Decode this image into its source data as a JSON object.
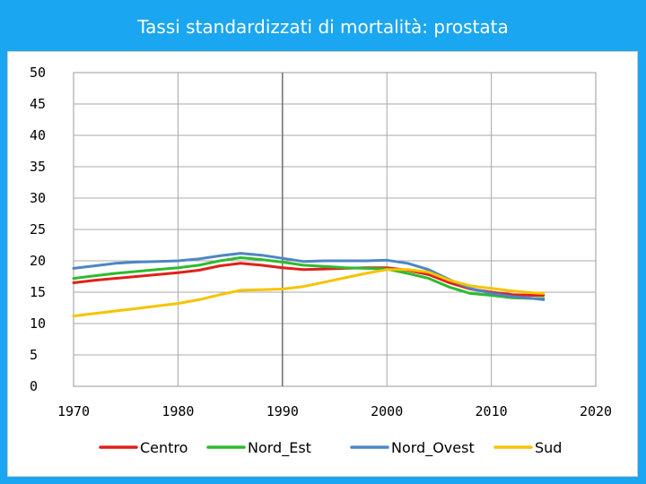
{
  "slide": {
    "title": "Tassi standardizzati di mortalità: prostata",
    "background": "#1aa6f0"
  },
  "chart_data": {
    "type": "line",
    "title": "Tassi standardizzati di mortalità: prostata",
    "xlabel": "",
    "ylabel": "",
    "xlim": [
      1970,
      2020
    ],
    "ylim": [
      0,
      50
    ],
    "xticks": [
      1970,
      1980,
      1990,
      2000,
      2010,
      2020
    ],
    "yticks": [
      0,
      5,
      10,
      15,
      20,
      25,
      30,
      35,
      40,
      45,
      50
    ],
    "grid": true,
    "legend": "bottom",
    "series": [
      {
        "name": "Centro",
        "color": "#e0201a",
        "x": [
          1970,
          1972,
          1974,
          1976,
          1978,
          1980,
          1982,
          1984,
          1986,
          1988,
          1990,
          1992,
          1994,
          1996,
          1998,
          2000,
          2002,
          2004,
          2006,
          2008,
          2010,
          2012,
          2014,
          2015
        ],
        "y": [
          16.5,
          16.9,
          17.2,
          17.5,
          17.8,
          18.1,
          18.5,
          19.2,
          19.6,
          19.3,
          18.9,
          18.6,
          18.7,
          18.8,
          18.9,
          18.9,
          18.5,
          17.8,
          16.5,
          15.5,
          15.0,
          14.6,
          14.5,
          14.5
        ]
      },
      {
        "name": "Nord_Est",
        "color": "#2dbb2d",
        "x": [
          1970,
          1972,
          1974,
          1976,
          1978,
          1980,
          1982,
          1984,
          1986,
          1988,
          1990,
          1992,
          1994,
          1996,
          1998,
          2000,
          2002,
          2004,
          2006,
          2008,
          2010,
          2012,
          2014,
          2015
        ],
        "y": [
          17.2,
          17.6,
          18.0,
          18.3,
          18.6,
          18.9,
          19.3,
          20.0,
          20.5,
          20.2,
          19.8,
          19.3,
          19.1,
          18.9,
          18.8,
          18.7,
          18.0,
          17.2,
          15.8,
          14.8,
          14.5,
          14.1,
          14.0,
          14.0
        ]
      },
      {
        "name": "Nord_Ovest",
        "color": "#4d86c4",
        "x": [
          1970,
          1972,
          1974,
          1976,
          1978,
          1980,
          1982,
          1984,
          1986,
          1988,
          1990,
          1992,
          1994,
          1996,
          1998,
          2000,
          2002,
          2004,
          2006,
          2008,
          2010,
          2012,
          2014,
          2015
        ],
        "y": [
          18.8,
          19.2,
          19.6,
          19.8,
          19.9,
          20.0,
          20.3,
          20.8,
          21.2,
          20.9,
          20.4,
          19.9,
          20.0,
          20.0,
          20.0,
          20.1,
          19.6,
          18.6,
          17.0,
          15.6,
          14.8,
          14.3,
          14.0,
          13.8
        ]
      },
      {
        "name": "Sud",
        "color": "#f5c400",
        "x": [
          1970,
          1972,
          1974,
          1976,
          1978,
          1980,
          1982,
          1984,
          1986,
          1988,
          1990,
          1992,
          1994,
          1996,
          1998,
          2000,
          2002,
          2004,
          2006,
          2008,
          2010,
          2012,
          2014,
          2015
        ],
        "y": [
          11.2,
          11.6,
          12.0,
          12.4,
          12.8,
          13.2,
          13.8,
          14.6,
          15.3,
          15.4,
          15.5,
          15.9,
          16.6,
          17.3,
          18.0,
          18.6,
          18.6,
          18.2,
          16.9,
          16.0,
          15.6,
          15.2,
          14.9,
          14.8
        ]
      }
    ]
  }
}
